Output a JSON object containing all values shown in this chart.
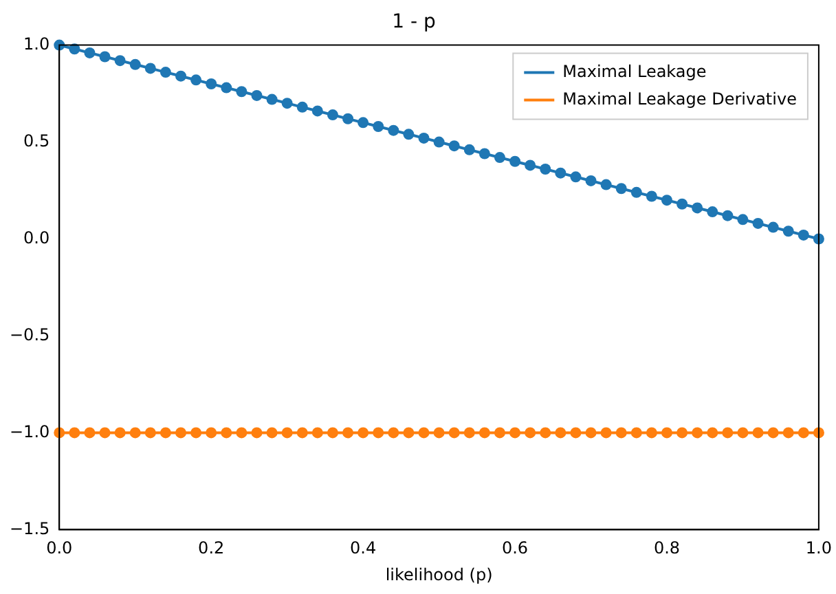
{
  "chart_data": {
    "type": "line",
    "title": "1 - p",
    "xlabel": "likelihood (p)",
    "x": [
      0,
      0.02,
      0.04,
      0.06,
      0.08,
      0.1,
      0.12,
      0.14,
      0.16,
      0.18,
      0.2,
      0.22,
      0.24,
      0.26,
      0.28,
      0.3,
      0.32,
      0.34,
      0.36,
      0.38,
      0.4,
      0.42,
      0.44,
      0.46,
      0.48,
      0.5,
      0.52,
      0.54,
      0.56,
      0.58,
      0.6,
      0.62,
      0.64,
      0.66,
      0.68,
      0.7,
      0.72,
      0.74,
      0.76,
      0.78,
      0.8,
      0.82,
      0.84,
      0.86,
      0.88,
      0.9,
      0.92,
      0.94,
      0.96,
      0.98,
      1
    ],
    "series": [
      {
        "name": "Maximal Leakage",
        "color": "#1f77b4",
        "values": [
          1,
          0.98,
          0.96,
          0.94,
          0.92,
          0.9,
          0.88,
          0.86,
          0.84,
          0.82,
          0.8,
          0.78,
          0.76,
          0.74,
          0.72,
          0.7,
          0.68,
          0.66,
          0.64,
          0.62,
          0.6,
          0.58,
          0.56,
          0.54,
          0.52,
          0.5,
          0.48,
          0.46,
          0.44,
          0.42,
          0.4,
          0.38,
          0.36,
          0.34,
          0.32,
          0.3,
          0.28,
          0.26,
          0.24,
          0.22,
          0.2,
          0.18,
          0.16,
          0.14,
          0.12,
          0.1,
          0.08,
          0.06,
          0.04,
          0.02,
          0
        ]
      },
      {
        "name": "Maximal Leakage Derivative",
        "color": "#ff7f0e",
        "values": [
          -1,
          -1,
          -1,
          -1,
          -1,
          -1,
          -1,
          -1,
          -1,
          -1,
          -1,
          -1,
          -1,
          -1,
          -1,
          -1,
          -1,
          -1,
          -1,
          -1,
          -1,
          -1,
          -1,
          -1,
          -1,
          -1,
          -1,
          -1,
          -1,
          -1,
          -1,
          -1,
          -1,
          -1,
          -1,
          -1,
          -1,
          -1,
          -1,
          -1,
          -1,
          -1,
          -1,
          -1,
          -1,
          -1,
          -1,
          -1,
          -1,
          -1,
          -1
        ]
      }
    ],
    "xlim": [
      0,
      1
    ],
    "xticks": [
      {
        "value": 0,
        "label": "0.0"
      },
      0.2,
      0.4,
      0.6,
      0.8,
      {
        "value": 1,
        "label": "1.0"
      }
    ],
    "ylim": [
      -1.5,
      1
    ],
    "yticks": [
      -1.5,
      {
        "value": -1,
        "label": "−1.0"
      },
      -0.5,
      {
        "value": 0,
        "label": "0.0"
      },
      0.5,
      {
        "value": 1,
        "label": "1.0"
      }
    ],
    "legend": "top right",
    "marker": "circle",
    "line_style": "solid",
    "grid": false
  }
}
